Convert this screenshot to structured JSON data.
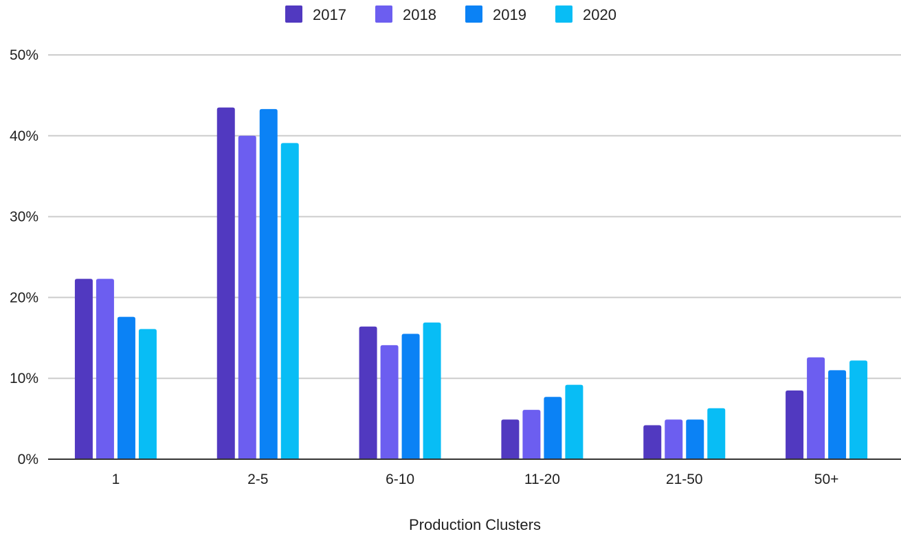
{
  "chart_data": {
    "type": "bar",
    "xlabel": "Production Clusters",
    "ylabel": "",
    "categories": [
      "1",
      "2-5",
      "6-10",
      "11-20",
      "21-50",
      "50+"
    ],
    "series": [
      {
        "name": "2017",
        "color": "#5139c0",
        "values": [
          22.3,
          43.5,
          16.4,
          4.9,
          4.2,
          8.5
        ]
      },
      {
        "name": "2018",
        "color": "#6c5ef0",
        "values": [
          22.3,
          40.0,
          14.1,
          6.1,
          4.9,
          12.6
        ]
      },
      {
        "name": "2019",
        "color": "#0b82f5",
        "values": [
          17.6,
          43.3,
          15.5,
          7.7,
          4.9,
          11.0
        ]
      },
      {
        "name": "2020",
        "color": "#08bdf5",
        "values": [
          16.1,
          39.1,
          16.9,
          9.2,
          6.3,
          12.2
        ]
      }
    ],
    "ylim": [
      0,
      50
    ],
    "yticks": [
      0,
      10,
      20,
      30,
      40,
      50
    ],
    "ytick_labels": [
      "0%",
      "10%",
      "20%",
      "30%",
      "40%",
      "50%"
    ],
    "grid": true,
    "legend_position": "top-center"
  }
}
